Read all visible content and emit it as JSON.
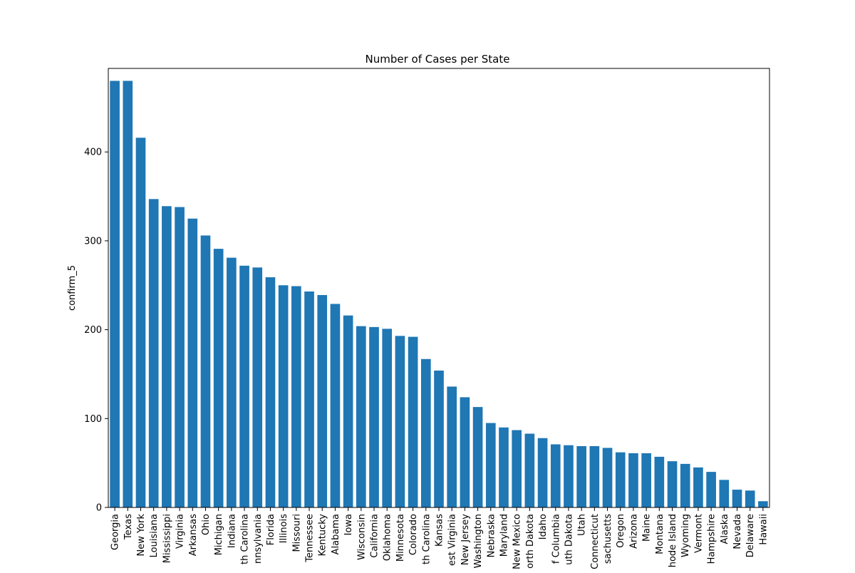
{
  "chart_data": {
    "type": "bar",
    "title": "Number of Cases per State",
    "xlabel": "",
    "ylabel": "confirm_5",
    "ylim": [
      0,
      494
    ],
    "yticks": [
      0,
      100,
      200,
      300,
      400
    ],
    "grid": false,
    "bar_color": "#1f77b4",
    "categories": [
      "Georgia",
      "Texas",
      "New York",
      "Louisiana",
      "Mississippi",
      "Virginia",
      "Arkansas",
      "Ohio",
      "Michigan",
      "Indiana",
      "th Carolina",
      "nnsylvania",
      "Florida",
      "Illinois",
      "Missouri",
      "Tennessee",
      "Kentucky",
      "Alabama",
      "Iowa",
      "Wisconsin",
      "California",
      "Oklahoma",
      "Minnesota",
      "Colorado",
      "th Carolina",
      "Kansas",
      "est Virginia",
      "New Jersey",
      "Washington",
      "Nebraska",
      "Maryland",
      "New Mexico",
      "orth Dakota",
      "Idaho",
      "f Columbia",
      "uth Dakota",
      "Utah",
      "Connecticut",
      "sachusetts",
      "Oregon",
      "Arizona",
      "Maine",
      "Montana",
      "hode Island",
      "Wyoming",
      "Vermont",
      "Hampshire",
      "Alaska",
      "Nevada",
      "Delaware",
      "Hawaii"
    ],
    "values": [
      480,
      480,
      416,
      347,
      339,
      338,
      325,
      306,
      291,
      281,
      272,
      270,
      259,
      250,
      249,
      243,
      239,
      229,
      216,
      204,
      203,
      201,
      193,
      192,
      167,
      154,
      136,
      124,
      113,
      95,
      90,
      87,
      83,
      78,
      71,
      70,
      69,
      69,
      67,
      62,
      61,
      61,
      57,
      52,
      49,
      45,
      40,
      31,
      20,
      19,
      7
    ]
  }
}
